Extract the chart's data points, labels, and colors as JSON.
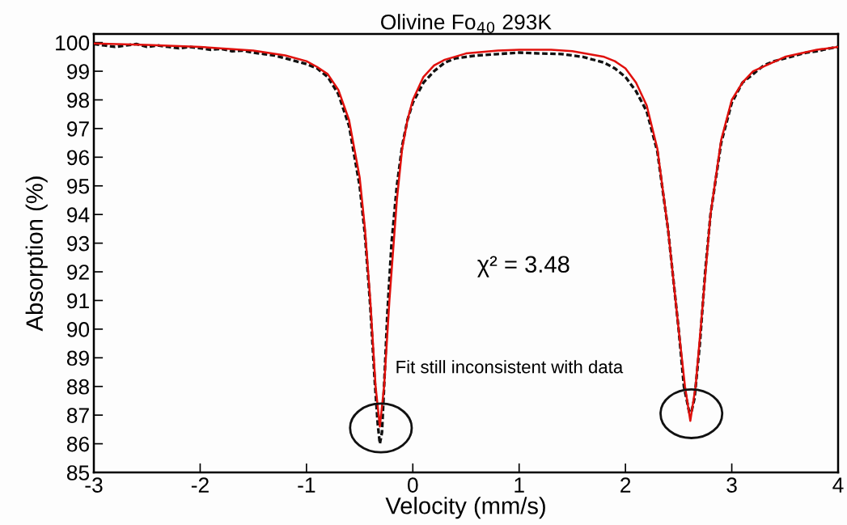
{
  "chart_data": {
    "type": "line",
    "title": "Olivine Fo$_{40}$ 293K",
    "xlabel": "Velocity (mm/s)",
    "ylabel": "Absorption (%)",
    "xlim": [
      -3,
      4
    ],
    "xticks": [
      -3,
      -2,
      -1,
      0,
      1,
      2,
      3,
      4
    ],
    "ylim": [
      85,
      100.3
    ],
    "yticks": [
      85,
      86,
      87,
      88,
      89,
      90,
      91,
      92,
      93,
      94,
      95,
      96,
      97,
      98,
      99,
      100
    ],
    "grid": false,
    "marker": "none",
    "series": [
      {
        "color": "#111111",
        "line_style": "dashed",
        "x": [
          -3,
          -2.9,
          -2.8,
          -2.7,
          -2.6,
          -2.5,
          -2.4,
          -2.3,
          -2.2,
          -2.1,
          -2.0,
          -1.9,
          -1.8,
          -1.7,
          -1.6,
          -1.5,
          -1.4,
          -1.3,
          -1.2,
          -1.1,
          -1.0,
          -0.9,
          -0.8,
          -0.7,
          -0.6,
          -0.5,
          -0.45,
          -0.4,
          -0.36,
          -0.33,
          -0.31,
          -0.29,
          -0.27,
          -0.24,
          -0.2,
          -0.15,
          -0.1,
          -0.05,
          0,
          0.1,
          0.2,
          0.3,
          0.4,
          0.5,
          0.6,
          0.8,
          1.0,
          1.2,
          1.4,
          1.6,
          1.8,
          1.9,
          2.0,
          2.1,
          2.2,
          2.3,
          2.4,
          2.5,
          2.55,
          2.6,
          2.62,
          2.65,
          2.7,
          2.75,
          2.8,
          2.9,
          3.0,
          3.1,
          3.2,
          3.3,
          3.4,
          3.5,
          3.6,
          3.7,
          3.8,
          3.9,
          4.0
        ],
        "values": [
          99.95,
          99.9,
          99.85,
          99.9,
          99.95,
          99.85,
          99.9,
          99.85,
          99.8,
          99.85,
          99.8,
          99.75,
          99.78,
          99.7,
          99.72,
          99.65,
          99.6,
          99.55,
          99.45,
          99.35,
          99.25,
          99.1,
          98.8,
          98.2,
          97.1,
          95.0,
          93.3,
          90.8,
          88.3,
          86.7,
          86.0,
          86.4,
          88.0,
          90.5,
          93.0,
          95.0,
          96.4,
          97.3,
          97.9,
          98.6,
          99.0,
          99.3,
          99.45,
          99.5,
          99.55,
          99.6,
          99.65,
          99.62,
          99.6,
          99.5,
          99.3,
          99.1,
          98.8,
          98.3,
          97.6,
          96.2,
          93.5,
          90.0,
          88.0,
          87.1,
          87.1,
          87.6,
          89.5,
          92.0,
          94.0,
          96.5,
          97.9,
          98.6,
          98.9,
          99.2,
          99.35,
          99.45,
          99.55,
          99.65,
          99.7,
          99.78,
          99.85
        ]
      },
      {
        "color": "#e0100c",
        "line_style": "solid",
        "x": [
          -3,
          -2.5,
          -2,
          -1.5,
          -1.2,
          -1,
          -0.9,
          -0.8,
          -0.7,
          -0.6,
          -0.5,
          -0.45,
          -0.4,
          -0.35,
          -0.31,
          -0.27,
          -0.22,
          -0.15,
          -0.1,
          -0.05,
          0,
          0.1,
          0.2,
          0.3,
          0.5,
          0.8,
          1,
          1.3,
          1.5,
          1.8,
          1.9,
          2,
          2.1,
          2.2,
          2.3,
          2.4,
          2.5,
          2.56,
          2.61,
          2.66,
          2.73,
          2.8,
          2.9,
          3,
          3.1,
          3.2,
          3.5,
          3.8,
          4
        ],
        "values": [
          99.97,
          99.92,
          99.85,
          99.72,
          99.55,
          99.35,
          99.15,
          98.9,
          98.35,
          97.3,
          95.3,
          93.5,
          91.0,
          88.0,
          86.6,
          88.0,
          91.0,
          94.5,
          96.3,
          97.3,
          98.0,
          98.8,
          99.2,
          99.4,
          99.62,
          99.72,
          99.75,
          99.75,
          99.7,
          99.5,
          99.35,
          99.1,
          98.6,
          97.8,
          96.3,
          93.5,
          90.0,
          88.0,
          86.8,
          88.0,
          91.0,
          94.0,
          96.6,
          98.0,
          98.6,
          99.0,
          99.5,
          99.75,
          99.85
        ]
      }
    ],
    "annotations": [
      "Fit still inconsistent with data",
      "χ² = 3.48"
    ]
  }
}
